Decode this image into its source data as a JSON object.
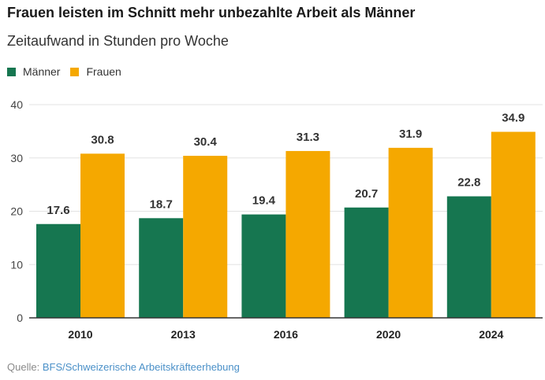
{
  "header": {
    "title": "Frauen leisten im Schnitt mehr unbezahlte Arbeit als Männer",
    "subtitle": "Zeitaufwand in Stunden pro Woche"
  },
  "colors": {
    "maenner": "#167650",
    "frauen": "#f5a800"
  },
  "chart_data": {
    "type": "bar",
    "title": "Frauen leisten im Schnitt mehr unbezahlte Arbeit als Männer",
    "subtitle": "Zeitaufwand in Stunden pro Woche",
    "xlabel": "",
    "ylabel": "",
    "categories": [
      "2010",
      "2013",
      "2016",
      "2020",
      "2024"
    ],
    "series": [
      {
        "name": "Männer",
        "values": [
          17.6,
          18.7,
          19.4,
          20.7,
          22.8
        ]
      },
      {
        "name": "Frauen",
        "values": [
          30.8,
          30.4,
          31.3,
          31.9,
          34.9
        ]
      }
    ],
    "value_labels": {
      "Männer": [
        "17.6",
        "18.7",
        "19.4",
        "20.7",
        "22.8"
      ],
      "Frauen": [
        "30.8",
        "30.4",
        "31.3",
        "31.9",
        "34.9"
      ]
    },
    "ylim": [
      0,
      40
    ],
    "yticks": [
      "0",
      "10",
      "20",
      "30",
      "40"
    ],
    "grid": true,
    "legend": "top-left"
  },
  "source": {
    "label": "Quelle:",
    "text": "BFS/Schweizerische Arbeitskräfteerhebung"
  }
}
